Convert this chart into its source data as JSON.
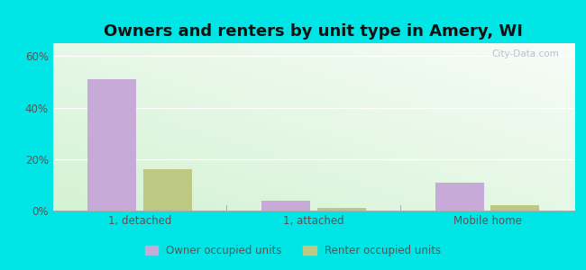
{
  "title": "Owners and renters by unit type in Amery, WI",
  "categories": [
    "1, detached",
    "1, attached",
    "Mobile home"
  ],
  "owner_values": [
    51,
    4,
    11
  ],
  "renter_values": [
    16,
    1,
    2
  ],
  "owner_color": "#c8aad8",
  "renter_color": "#bdc882",
  "ylim": [
    0,
    65
  ],
  "yticks": [
    0,
    20,
    40,
    60
  ],
  "ytick_labels": [
    "0%",
    "20%",
    "40%",
    "60%"
  ],
  "bar_width": 0.28,
  "background_color": "#00e5e5",
  "legend_owner": "Owner occupied units",
  "legend_renter": "Renter occupied units",
  "title_fontsize": 13,
  "watermark": "City-Data.com"
}
